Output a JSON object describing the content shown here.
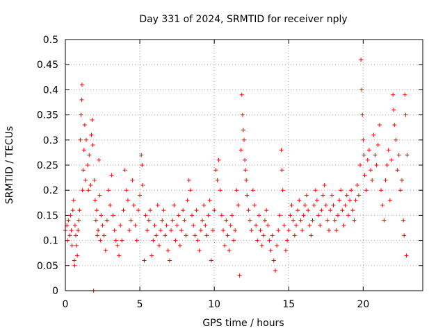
{
  "chart_data": {
    "type": "scatter",
    "title": "Day 331 of 2024, SRMTID for receiver nply",
    "xlabel": "GPS time / hours",
    "ylabel": "SRMTID / TECUs",
    "xlim": [
      0,
      24
    ],
    "ylim": [
      0,
      0.5
    ],
    "x_ticks": [
      0,
      5,
      10,
      15,
      20
    ],
    "y_ticks": [
      0,
      0.05,
      0.1,
      0.15,
      0.2,
      0.25,
      0.3,
      0.35,
      0.4,
      0.45,
      0.5
    ],
    "x_tick_labels": [
      "0",
      "5",
      "10",
      "15",
      "20"
    ],
    "y_tick_labels": [
      "0",
      "0.05",
      "0.1",
      "0.15",
      "0.2",
      "0.25",
      "0.3",
      "0.35",
      "0.4",
      "0.45",
      "0.5"
    ],
    "grid": true,
    "marker": "+",
    "color": "#ff0000",
    "series": [
      {
        "name": "SRMTID",
        "points": [
          [
            0.0,
            0.12
          ],
          [
            0.1,
            0.13
          ],
          [
            0.15,
            0.1
          ],
          [
            0.2,
            0.14
          ],
          [
            0.3,
            0.11
          ],
          [
            0.35,
            0.15
          ],
          [
            0.4,
            0.12
          ],
          [
            0.45,
            0.09
          ],
          [
            0.5,
            0.16
          ],
          [
            0.55,
            0.18
          ],
          [
            0.6,
            0.06
          ],
          [
            0.62,
            0.05
          ],
          [
            0.65,
            0.13
          ],
          [
            0.7,
            0.11
          ],
          [
            0.75,
            0.09
          ],
          [
            0.8,
            0.07
          ],
          [
            0.85,
            0.12
          ],
          [
            0.9,
            0.14
          ],
          [
            0.95,
            0.16
          ],
          [
            1.0,
            0.3
          ],
          [
            1.05,
            0.35
          ],
          [
            1.1,
            0.38
          ],
          [
            1.12,
            0.41
          ],
          [
            1.15,
            0.2
          ],
          [
            1.2,
            0.24
          ],
          [
            1.25,
            0.28
          ],
          [
            1.3,
            0.33
          ],
          [
            1.35,
            0.22
          ],
          [
            1.4,
            0.3
          ],
          [
            1.5,
            0.25
          ],
          [
            1.55,
            0.2
          ],
          [
            1.6,
            0.27
          ],
          [
            1.7,
            0.21
          ],
          [
            1.75,
            0.31
          ],
          [
            1.8,
            0.34
          ],
          [
            1.85,
            0.29
          ],
          [
            1.9,
            0.0
          ],
          [
            1.95,
            0.22
          ],
          [
            2.0,
            0.18
          ],
          [
            2.05,
            0.14
          ],
          [
            2.1,
            0.16
          ],
          [
            2.15,
            0.11
          ],
          [
            2.2,
            0.12
          ],
          [
            2.25,
            0.26
          ],
          [
            2.3,
            0.19
          ],
          [
            2.35,
            0.1
          ],
          [
            2.4,
            0.15
          ],
          [
            2.5,
            0.13
          ],
          [
            2.6,
            0.11
          ],
          [
            2.7,
            0.08
          ],
          [
            2.8,
            0.14
          ],
          [
            2.9,
            0.2
          ],
          [
            3.0,
            0.17
          ],
          [
            3.1,
            0.23
          ],
          [
            3.2,
            0.15
          ],
          [
            3.3,
            0.12
          ],
          [
            3.4,
            0.1
          ],
          [
            3.5,
            0.09
          ],
          [
            3.6,
            0.07
          ],
          [
            3.7,
            0.13
          ],
          [
            3.8,
            0.1
          ],
          [
            3.9,
            0.16
          ],
          [
            4.0,
            0.24
          ],
          [
            4.1,
            0.2
          ],
          [
            4.2,
            0.18
          ],
          [
            4.3,
            0.12
          ],
          [
            4.4,
            0.14
          ],
          [
            4.5,
            0.22
          ],
          [
            4.6,
            0.17
          ],
          [
            4.7,
            0.13
          ],
          [
            4.8,
            0.1
          ],
          [
            4.9,
            0.16
          ],
          [
            5.0,
            0.19
          ],
          [
            5.1,
            0.27
          ],
          [
            5.15,
            0.25
          ],
          [
            5.2,
            0.21
          ],
          [
            5.3,
            0.06
          ],
          [
            5.4,
            0.15
          ],
          [
            5.5,
            0.12
          ],
          [
            5.6,
            0.14
          ],
          [
            5.7,
            0.16
          ],
          [
            5.8,
            0.07
          ],
          [
            5.9,
            0.1
          ],
          [
            6.0,
            0.13
          ],
          [
            6.1,
            0.11
          ],
          [
            6.2,
            0.17
          ],
          [
            6.3,
            0.09
          ],
          [
            6.4,
            0.12
          ],
          [
            6.5,
            0.14
          ],
          [
            6.6,
            0.16
          ],
          [
            6.7,
            0.11
          ],
          [
            6.8,
            0.13
          ],
          [
            6.9,
            0.08
          ],
          [
            7.0,
            0.06
          ],
          [
            7.1,
            0.12
          ],
          [
            7.2,
            0.14
          ],
          [
            7.3,
            0.17
          ],
          [
            7.4,
            0.1
          ],
          [
            7.5,
            0.13
          ],
          [
            7.6,
            0.15
          ],
          [
            7.7,
            0.09
          ],
          [
            7.8,
            0.12
          ],
          [
            7.9,
            0.16
          ],
          [
            8.0,
            0.14
          ],
          [
            8.1,
            0.11
          ],
          [
            8.2,
            0.18
          ],
          [
            8.3,
            0.22
          ],
          [
            8.4,
            0.2
          ],
          [
            8.5,
            0.15
          ],
          [
            8.6,
            0.13
          ],
          [
            8.7,
            0.11
          ],
          [
            8.8,
            0.16
          ],
          [
            8.9,
            0.1
          ],
          [
            9.0,
            0.08
          ],
          [
            9.1,
            0.12
          ],
          [
            9.2,
            0.14
          ],
          [
            9.3,
            0.17
          ],
          [
            9.4,
            0.13
          ],
          [
            9.5,
            0.11
          ],
          [
            9.6,
            0.15
          ],
          [
            9.7,
            0.18
          ],
          [
            9.8,
            0.06
          ],
          [
            9.9,
            0.12
          ],
          [
            10.0,
            0.16
          ],
          [
            10.1,
            0.24
          ],
          [
            10.2,
            0.22
          ],
          [
            10.3,
            0.26
          ],
          [
            10.4,
            0.2
          ],
          [
            10.5,
            0.15
          ],
          [
            10.6,
            0.12
          ],
          [
            10.7,
            0.09
          ],
          [
            10.8,
            0.14
          ],
          [
            10.9,
            0.11
          ],
          [
            11.0,
            0.08
          ],
          [
            11.1,
            0.13
          ],
          [
            11.2,
            0.15
          ],
          [
            11.3,
            0.1
          ],
          [
            11.4,
            0.12
          ],
          [
            11.5,
            0.2
          ],
          [
            11.6,
            0.17
          ],
          [
            11.7,
            0.03
          ],
          [
            11.8,
            0.28
          ],
          [
            11.85,
            0.39
          ],
          [
            11.9,
            0.35
          ],
          [
            11.95,
            0.32
          ],
          [
            12.0,
            0.3
          ],
          [
            12.05,
            0.26
          ],
          [
            12.1,
            0.24
          ],
          [
            12.15,
            0.22
          ],
          [
            12.2,
            0.19
          ],
          [
            12.3,
            0.16
          ],
          [
            12.4,
            0.14
          ],
          [
            12.5,
            0.12
          ],
          [
            12.6,
            0.2
          ],
          [
            12.7,
            0.17
          ],
          [
            12.8,
            0.13
          ],
          [
            12.9,
            0.1
          ],
          [
            13.0,
            0.15
          ],
          [
            13.1,
            0.12
          ],
          [
            13.2,
            0.09
          ],
          [
            13.3,
            0.11
          ],
          [
            13.4,
            0.14
          ],
          [
            13.5,
            0.16
          ],
          [
            13.6,
            0.13
          ],
          [
            13.7,
            0.1
          ],
          [
            13.8,
            0.08
          ],
          [
            13.9,
            0.11
          ],
          [
            14.0,
            0.06
          ],
          [
            14.1,
            0.04
          ],
          [
            14.2,
            0.09
          ],
          [
            14.3,
            0.12
          ],
          [
            14.4,
            0.15
          ],
          [
            14.5,
            0.28
          ],
          [
            14.55,
            0.24
          ],
          [
            14.6,
            0.2
          ],
          [
            14.7,
            0.13
          ],
          [
            14.8,
            0.08
          ],
          [
            14.9,
            0.1
          ],
          [
            15.0,
            0.12
          ],
          [
            15.1,
            0.15
          ],
          [
            15.2,
            0.17
          ],
          [
            15.3,
            0.14
          ],
          [
            15.4,
            0.11
          ],
          [
            15.5,
            0.13
          ],
          [
            15.6,
            0.16
          ],
          [
            15.7,
            0.18
          ],
          [
            15.8,
            0.14
          ],
          [
            15.9,
            0.12
          ],
          [
            16.0,
            0.15
          ],
          [
            16.1,
            0.17
          ],
          [
            16.2,
            0.19
          ],
          [
            16.3,
            0.16
          ],
          [
            16.4,
            0.13
          ],
          [
            16.5,
            0.11
          ],
          [
            16.6,
            0.14
          ],
          [
            16.7,
            0.17
          ],
          [
            16.8,
            0.2
          ],
          [
            16.9,
            0.18
          ],
          [
            17.0,
            0.15
          ],
          [
            17.1,
            0.13
          ],
          [
            17.2,
            0.16
          ],
          [
            17.3,
            0.19
          ],
          [
            17.4,
            0.21
          ],
          [
            17.5,
            0.17
          ],
          [
            17.6,
            0.14
          ],
          [
            17.7,
            0.12
          ],
          [
            17.8,
            0.16
          ],
          [
            17.9,
            0.19
          ],
          [
            18.0,
            0.17
          ],
          [
            18.1,
            0.14
          ],
          [
            18.2,
            0.12
          ],
          [
            18.3,
            0.15
          ],
          [
            18.4,
            0.18
          ],
          [
            18.5,
            0.2
          ],
          [
            18.6,
            0.16
          ],
          [
            18.7,
            0.13
          ],
          [
            18.8,
            0.17
          ],
          [
            18.9,
            0.19
          ],
          [
            19.0,
            0.15
          ],
          [
            19.1,
            0.18
          ],
          [
            19.2,
            0.2
          ],
          [
            19.3,
            0.16
          ],
          [
            19.4,
            0.14
          ],
          [
            19.5,
            0.18
          ],
          [
            19.6,
            0.21
          ],
          [
            19.7,
            0.19
          ],
          [
            19.8,
            0.25
          ],
          [
            19.85,
            0.46
          ],
          [
            19.9,
            0.4
          ],
          [
            19.95,
            0.35
          ],
          [
            20.0,
            0.3
          ],
          [
            20.05,
            0.27
          ],
          [
            20.1,
            0.23
          ],
          [
            20.2,
            0.2
          ],
          [
            20.3,
            0.26
          ],
          [
            20.4,
            0.28
          ],
          [
            20.5,
            0.24
          ],
          [
            20.6,
            0.22
          ],
          [
            20.7,
            0.31
          ],
          [
            20.8,
            0.27
          ],
          [
            20.9,
            0.25
          ],
          [
            21.0,
            0.29
          ],
          [
            21.1,
            0.33
          ],
          [
            21.2,
            0.2
          ],
          [
            21.3,
            0.17
          ],
          [
            21.4,
            0.14
          ],
          [
            21.5,
            0.22
          ],
          [
            21.6,
            0.25
          ],
          [
            21.7,
            0.28
          ],
          [
            21.8,
            0.18
          ],
          [
            21.9,
            0.26
          ],
          [
            22.0,
            0.39
          ],
          [
            22.05,
            0.36
          ],
          [
            22.1,
            0.33
          ],
          [
            22.2,
            0.3
          ],
          [
            22.3,
            0.24
          ],
          [
            22.4,
            0.27
          ],
          [
            22.5,
            0.2
          ],
          [
            22.6,
            0.22
          ],
          [
            22.7,
            0.14
          ],
          [
            22.75,
            0.11
          ],
          [
            22.8,
            0.39
          ],
          [
            22.85,
            0.35
          ],
          [
            22.9,
            0.07
          ],
          [
            22.95,
            0.27
          ]
        ]
      }
    ]
  }
}
